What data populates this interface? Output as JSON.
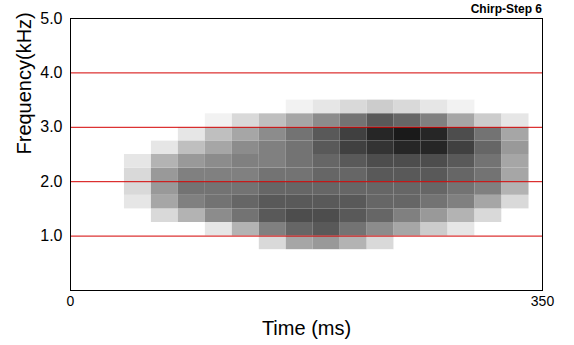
{
  "chart_data": {
    "type": "heatmap",
    "title": "Chirp-Step 6",
    "x_label": "Time (ms)",
    "y_label": "Frequency(kHz)",
    "xlim": [
      0,
      350
    ],
    "xticks": [
      0,
      350
    ],
    "ylim": [
      0,
      5
    ],
    "yticks": [
      1,
      2,
      3,
      4,
      5
    ],
    "grid": true,
    "zlim": [
      0,
      1
    ],
    "cells": {
      "x": [
        40,
        60,
        80,
        100,
        120,
        140,
        160,
        180,
        200,
        220,
        240,
        260,
        280,
        300,
        320,
        340
      ],
      "y": [
        0.75,
        1.0,
        1.25,
        1.5,
        1.75,
        2.0,
        2.25,
        2.5,
        2.75,
        3.0,
        3.25,
        3.5
      ],
      "z": [
        [
          0,
          0,
          0,
          0,
          0,
          0.15,
          0.35,
          0.4,
          0.3,
          0.15,
          0,
          0,
          0,
          0,
          0
        ],
        [
          0,
          0,
          0,
          0.1,
          0.3,
          0.5,
          0.6,
          0.65,
          0.55,
          0.45,
          0.35,
          0.2,
          0.1,
          0,
          0
        ],
        [
          0,
          0.15,
          0.3,
          0.45,
          0.55,
          0.65,
          0.7,
          0.7,
          0.65,
          0.6,
          0.5,
          0.4,
          0.3,
          0.15,
          0
        ],
        [
          0.1,
          0.35,
          0.5,
          0.55,
          0.6,
          0.65,
          0.65,
          0.65,
          0.65,
          0.6,
          0.6,
          0.55,
          0.5,
          0.35,
          0.15
        ],
        [
          0.15,
          0.4,
          0.55,
          0.55,
          0.55,
          0.6,
          0.6,
          0.6,
          0.6,
          0.6,
          0.6,
          0.6,
          0.55,
          0.5,
          0.3
        ],
        [
          0.15,
          0.4,
          0.5,
          0.5,
          0.5,
          0.55,
          0.55,
          0.6,
          0.6,
          0.65,
          0.65,
          0.65,
          0.6,
          0.55,
          0.35
        ],
        [
          0.1,
          0.3,
          0.4,
          0.45,
          0.5,
          0.5,
          0.55,
          0.6,
          0.65,
          0.7,
          0.7,
          0.7,
          0.65,
          0.55,
          0.35
        ],
        [
          0,
          0.1,
          0.25,
          0.35,
          0.45,
          0.5,
          0.55,
          0.65,
          0.75,
          0.8,
          0.85,
          0.85,
          0.75,
          0.6,
          0.4
        ],
        [
          0,
          0,
          0.1,
          0.25,
          0.35,
          0.45,
          0.55,
          0.65,
          0.75,
          0.85,
          0.9,
          0.85,
          0.7,
          0.55,
          0.35
        ],
        [
          0,
          0,
          0,
          0.05,
          0.15,
          0.25,
          0.35,
          0.45,
          0.55,
          0.65,
          0.6,
          0.5,
          0.35,
          0.2,
          0.1
        ],
        [
          0,
          0,
          0,
          0,
          0,
          0,
          0.05,
          0.1,
          0.15,
          0.2,
          0.15,
          0.1,
          0.05,
          0,
          0
        ]
      ]
    }
  }
}
